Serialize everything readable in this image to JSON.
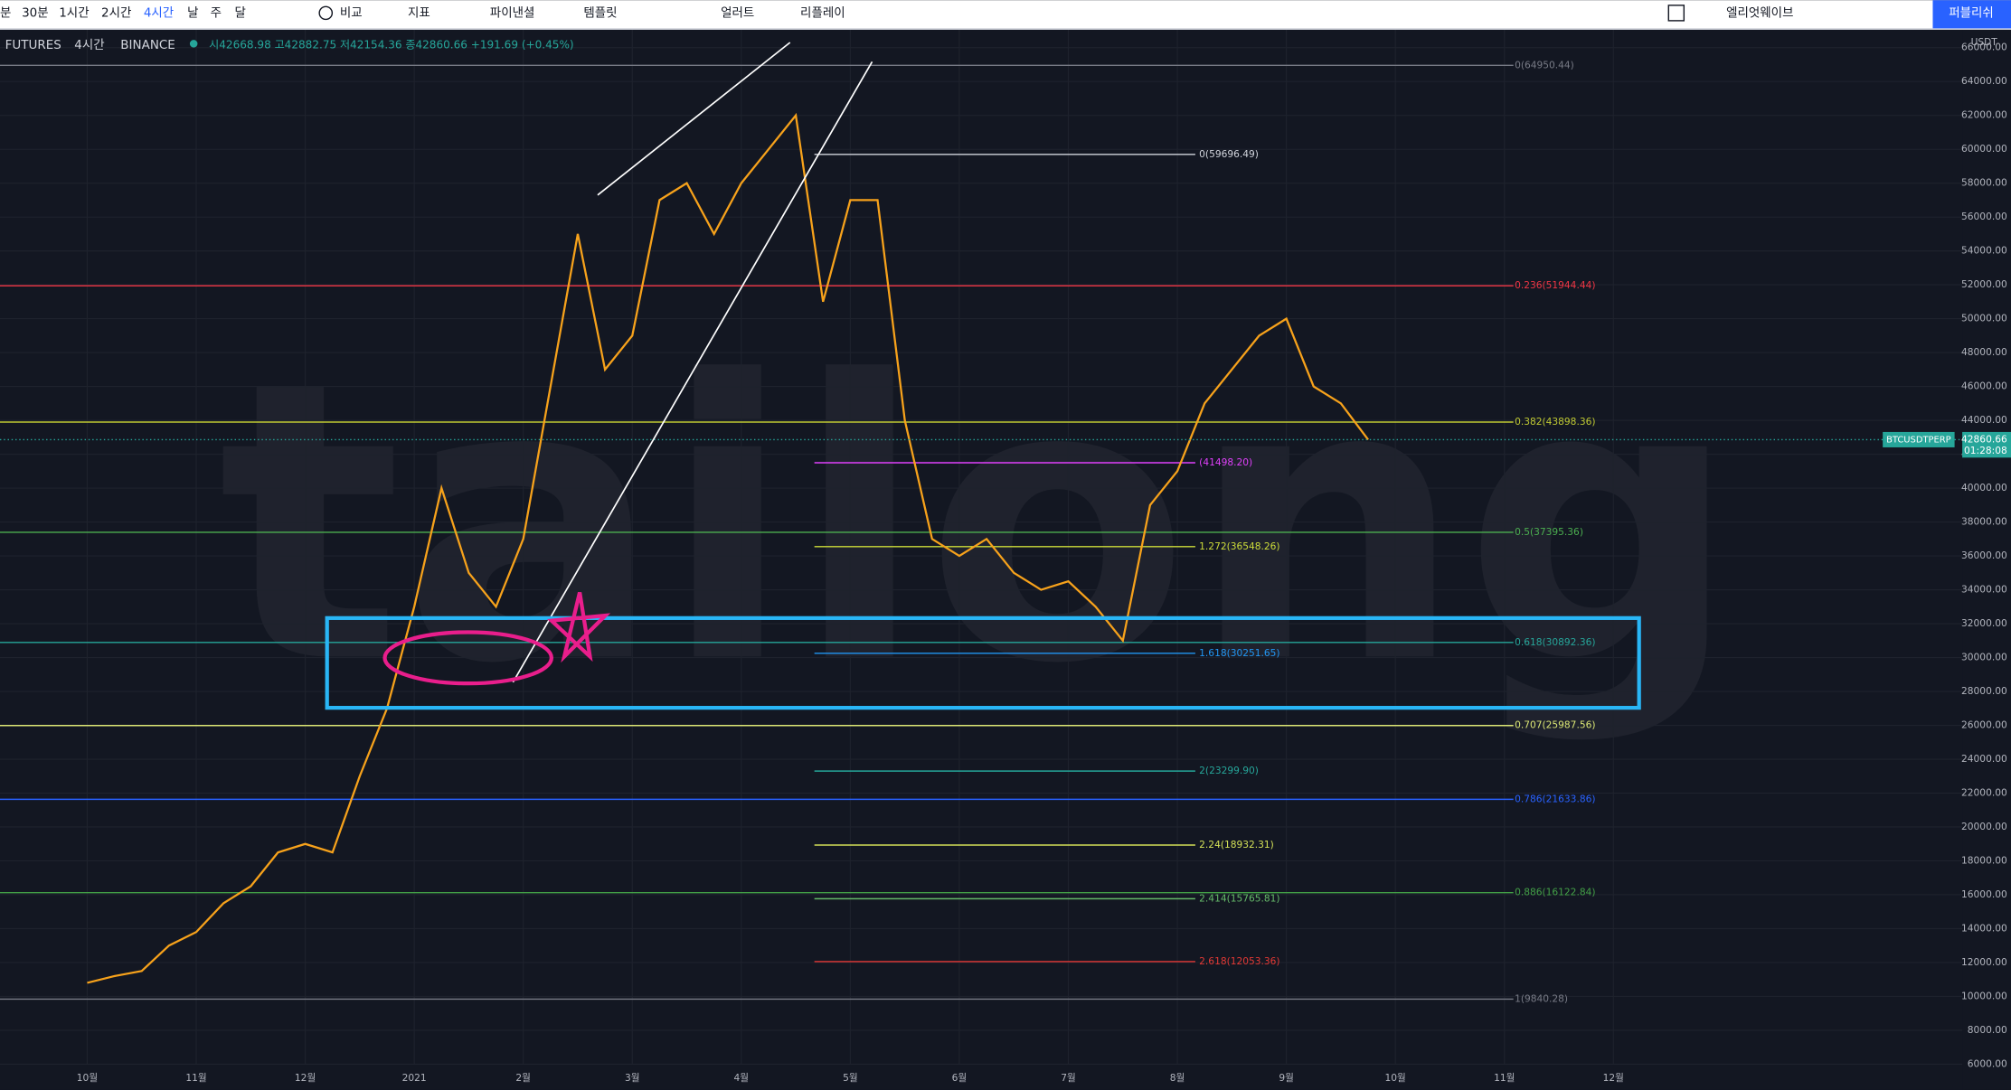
{
  "toolbar": {
    "intervals": [
      "분",
      "30분",
      "1시간",
      "2시간",
      "4시간",
      "날",
      "주",
      "달"
    ],
    "compare": "비교",
    "indicators": "지표",
    "financials": "파이낸셜",
    "templates": "템플릿",
    "alert": "얼러트",
    "replay": "리플레이",
    "layout": "엘리엇웨이브",
    "publish": "퍼블리쉬"
  },
  "legend": {
    "symbol": "FUTURES",
    "interval": "4시간",
    "exchange": "BINANCE",
    "ohlc": "시42668.98 고42882.75 저42154.36 종42860.66 +191.69 (+0.45%)"
  },
  "chart_data": {
    "type": "line",
    "watermark": "tailong",
    "currency": "USDT",
    "categories": [
      "10월",
      null,
      null,
      null,
      "11월",
      null,
      null,
      null,
      "12월",
      null,
      null,
      null,
      "2021",
      null,
      null,
      null,
      "2월",
      null,
      null,
      null,
      "3월",
      null,
      null,
      null,
      "4월",
      null,
      null,
      null,
      "5월",
      null,
      null,
      null,
      "6월",
      null,
      null,
      null,
      "7월",
      null,
      null,
      null,
      "8월",
      null,
      null,
      null,
      "9월",
      null,
      null,
      null,
      "10월",
      null,
      null,
      null,
      "11월",
      null,
      null,
      null,
      "12월",
      null,
      null,
      null
    ],
    "series": [
      {
        "name": "BTCUSDTPERP",
        "color": "#f7a21b",
        "values": [
          10800,
          11200,
          11500,
          13000,
          13800,
          15500,
          16500,
          18500,
          19000,
          18500,
          23000,
          27000,
          33000,
          40000,
          35000,
          33000,
          37000,
          46000,
          55000,
          47000,
          49000,
          57000,
          58000,
          55000,
          58000,
          60000,
          62000,
          51000,
          57000,
          57000,
          44000,
          37000,
          36000,
          37000,
          35000,
          34000,
          34500,
          33000,
          31000,
          39000,
          41000,
          45000,
          47000,
          49000,
          50000,
          46000,
          45000,
          42860.66,
          null,
          null,
          null,
          null,
          null,
          null,
          null,
          null,
          null,
          null,
          null,
          null
        ]
      }
    ],
    "last_price": 42860.66,
    "countdown": "01:28:08",
    "ylim": [
      6000,
      66000
    ],
    "yticks": [
      {
        "value": 6000,
        "label": "6000.00"
      },
      {
        "value": 8000,
        "label": "8000.00"
      },
      {
        "value": 10000,
        "label": "10000.00"
      },
      {
        "value": 12000,
        "label": "12000.00"
      },
      {
        "value": 14000,
        "label": "14000.00"
      },
      {
        "value": 16000,
        "label": "16000.00"
      },
      {
        "value": 18000,
        "label": "18000.00"
      },
      {
        "value": 20000,
        "label": "20000.00"
      },
      {
        "value": 22000,
        "label": "22000.00"
      },
      {
        "value": 24000,
        "label": "24000.00"
      },
      {
        "value": 26000,
        "label": "26000.00"
      },
      {
        "value": 28000,
        "label": "28000.00"
      },
      {
        "value": 30000,
        "label": "30000.00"
      },
      {
        "value": 32000,
        "label": "32000.00"
      },
      {
        "value": 34000,
        "label": "34000.00"
      },
      {
        "value": 36000,
        "label": "36000.00"
      },
      {
        "value": 38000,
        "label": "38000.00"
      },
      {
        "value": 40000,
        "label": "40000.00"
      },
      {
        "value": 42000,
        "label": "42000.00"
      },
      {
        "value": 44000,
        "label": "44000.00"
      },
      {
        "value": 46000,
        "label": "46000.00"
      },
      {
        "value": 48000,
        "label": "48000.00"
      },
      {
        "value": 50000,
        "label": "50000.00"
      },
      {
        "value": 52000,
        "label": "52000.00"
      },
      {
        "value": 54000,
        "label": "54000.00"
      },
      {
        "value": 56000,
        "label": "56000.00"
      },
      {
        "value": 58000,
        "label": "58000.00"
      },
      {
        "value": 60000,
        "label": "60000.00"
      },
      {
        "value": 62000,
        "label": "62000.00"
      },
      {
        "value": 64000,
        "label": "64000.00"
      },
      {
        "value": 66000,
        "label": "66000.00"
      }
    ],
    "grid": true,
    "retracement": [
      {
        "label": "0(64950.44)",
        "value": 64950.44,
        "color": "#787b86"
      },
      {
        "label": "0.236(51944.44)",
        "value": 51944.44,
        "color": "#f23645"
      },
      {
        "label": "0.382(43898.36)",
        "value": 43898.36,
        "color": "#c0ca33"
      },
      {
        "label": "0.5(37395.36)",
        "value": 37395.36,
        "color": "#4caf50"
      },
      {
        "label": "0.618(30892.36)",
        "value": 30892.36,
        "color": "#26a69a"
      },
      {
        "label": "0.707(25987.56)",
        "value": 25987.56,
        "color": "#dce775"
      },
      {
        "label": "0.786(21633.86)",
        "value": 21633.86,
        "color": "#2962ff"
      },
      {
        "label": "0.886(16122.84)",
        "value": 16122.84,
        "color": "#43a047"
      },
      {
        "label": "1(9840.28)",
        "value": 9840.28,
        "color": "#787b86"
      }
    ],
    "extension": [
      {
        "label": "0(59696.49)",
        "value": 59696.49,
        "color": "#d1d4dc"
      },
      {
        "label": "(41498.20)",
        "value": 41498.2,
        "color": "#e040fb"
      },
      {
        "label": "1.272(36548.26)",
        "value": 36548.26,
        "color": "#cddc39"
      },
      {
        "label": "1.618(30251.65)",
        "value": 30251.65,
        "color": "#2196f3"
      },
      {
        "label": "2(23299.90)",
        "value": 23299.9,
        "color": "#26a69a"
      },
      {
        "label": "2.24(18932.31)",
        "value": 18932.31,
        "color": "#d4e157"
      },
      {
        "label": "2.414(15765.81)",
        "value": 15765.81,
        "color": "#66bb6a"
      },
      {
        "label": "2.618(12053.36)",
        "value": 12053.36,
        "color": "#e53935"
      }
    ]
  }
}
